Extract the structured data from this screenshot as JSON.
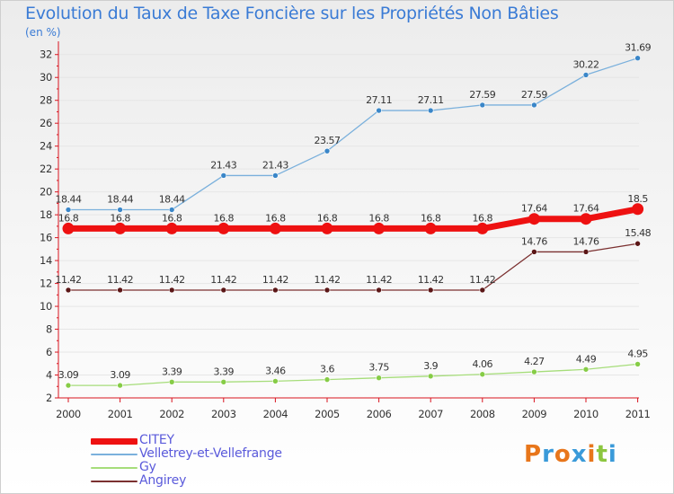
{
  "title": "Evolution du Taux de Taxe Foncière sur les Propriétés Non Bâties",
  "subtitle": "(en %)",
  "brand": "Proxiti",
  "colors": {
    "axis": "#d9141f",
    "label": "#333333",
    "brand": [
      "#e8761b",
      "#3a9ad9",
      "#e8761b",
      "#3a9ad9",
      "#e8761b",
      "#8cc63f",
      "#3a9ad9"
    ]
  },
  "chart_data": {
    "type": "line",
    "title": "Evolution du Taux de Taxe Foncière sur les Propriétés Non Bâties",
    "ylabel": "(en %)",
    "xlabel": "",
    "x": [
      "2000",
      "2001",
      "2002",
      "2003",
      "2004",
      "2005",
      "2006",
      "2007",
      "2008",
      "2009",
      "2010",
      "2011"
    ],
    "ylim": [
      2,
      33
    ],
    "yticks": [
      2,
      4,
      6,
      8,
      10,
      12,
      14,
      16,
      18,
      20,
      22,
      24,
      26,
      28,
      30,
      32
    ],
    "legend": "bottom-left",
    "series": [
      {
        "name": "Velletrey-et-Vellefrange",
        "color": "#7ab0dc",
        "marker": "#3a86c8",
        "width": 1.3,
        "values": [
          18.44,
          18.44,
          18.44,
          21.43,
          21.43,
          23.57,
          27.11,
          27.11,
          27.59,
          27.59,
          30.22,
          31.69
        ],
        "labels": [
          "18.44",
          "18.44",
          "18.44",
          "21.43",
          "21.43",
          "23.57",
          "27.11",
          "27.11",
          "27.59",
          "27.59",
          "30.22",
          "31.69"
        ]
      },
      {
        "name": "CITEY",
        "color": "#ee1111",
        "marker": "#ee1111",
        "width": 7,
        "values": [
          16.8,
          16.8,
          16.8,
          16.8,
          16.8,
          16.8,
          16.8,
          16.8,
          16.8,
          17.64,
          17.64,
          18.5
        ],
        "labels": [
          "16.8",
          "16.8",
          "16.8",
          "16.8",
          "16.8",
          "16.8",
          "16.8",
          "16.8",
          "16.8",
          "17.64",
          "17.64",
          "18.5"
        ]
      },
      {
        "name": "Angirey",
        "color": "#7b3030",
        "marker": "#5b1616",
        "width": 1.3,
        "values": [
          11.42,
          11.42,
          11.42,
          11.42,
          11.42,
          11.42,
          11.42,
          11.42,
          11.42,
          14.76,
          14.76,
          15.48
        ],
        "labels": [
          "11.42",
          "11.42",
          "11.42",
          "11.42",
          "11.42",
          "11.42",
          "11.42",
          "11.42",
          "11.42",
          "14.76",
          "14.76",
          "15.48"
        ]
      },
      {
        "name": "Gy",
        "color": "#a6dd7a",
        "marker": "#86cc46",
        "width": 1.3,
        "values": [
          3.09,
          3.09,
          3.39,
          3.39,
          3.46,
          3.6,
          3.75,
          3.9,
          4.06,
          4.27,
          4.49,
          4.95
        ],
        "labels": [
          "3.09",
          "3.09",
          "3.39",
          "3.39",
          "3.46",
          "3.6",
          "3.75",
          "3.9",
          "4.06",
          "4.27",
          "4.49",
          "4.95"
        ]
      }
    ],
    "legend_order": [
      "CITEY",
      "Velletrey-et-Vellefrange",
      "Gy",
      "Angirey"
    ]
  }
}
